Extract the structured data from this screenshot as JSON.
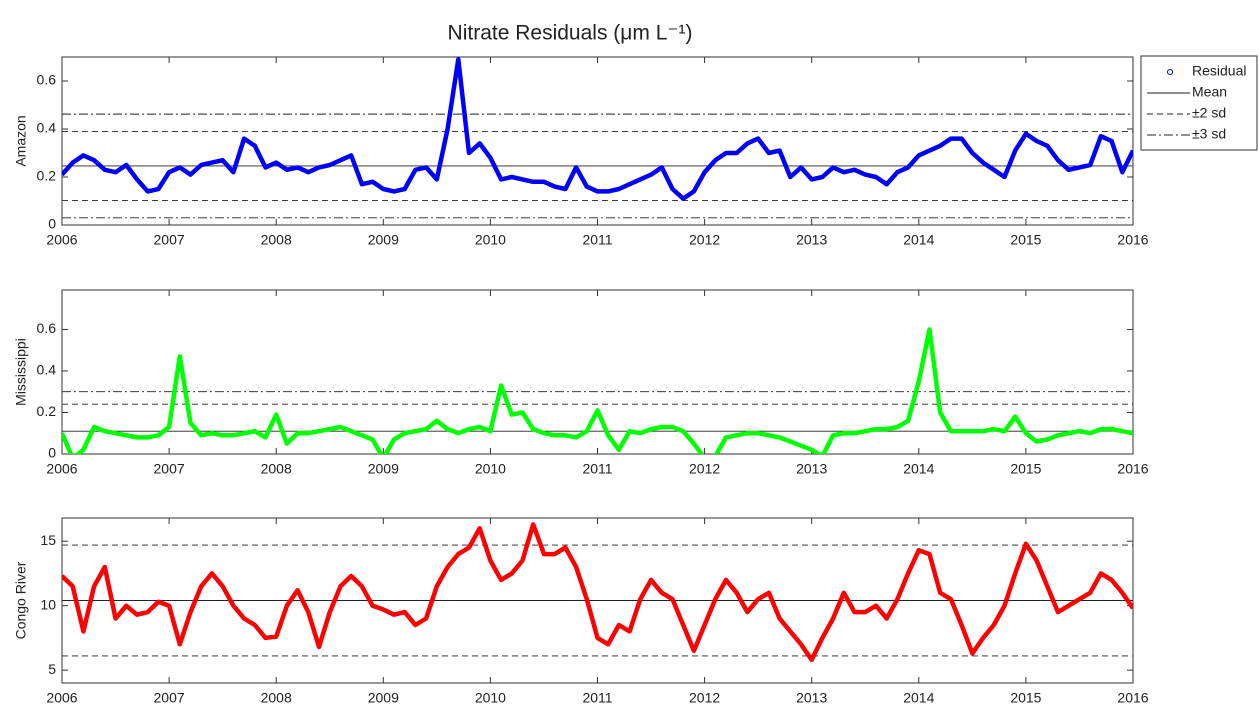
{
  "chart_data": [
    {
      "type": "scatter",
      "title": "Nitrate Residuals (μm L⁻¹)",
      "ylabel": "Amazon",
      "series_name": "Residual",
      "color": "#0000ff",
      "xlim": [
        2006,
        2016
      ],
      "xticks": [
        2006,
        2007,
        2008,
        2009,
        2010,
        2011,
        2012,
        2013,
        2014,
        2015,
        2016
      ],
      "ylim": [
        0,
        0.7
      ],
      "yticks": [
        0,
        0.2,
        0.4,
        0.6
      ],
      "x": [
        2006.0,
        2006.1,
        2006.2,
        2006.3,
        2006.4,
        2006.5,
        2006.6,
        2006.7,
        2006.8,
        2006.9,
        2007.0,
        2007.1,
        2007.2,
        2007.3,
        2007.4,
        2007.5,
        2007.6,
        2007.7,
        2007.8,
        2007.9,
        2008.0,
        2008.1,
        2008.2,
        2008.3,
        2008.4,
        2008.5,
        2008.6,
        2008.7,
        2008.8,
        2008.9,
        2009.0,
        2009.1,
        2009.2,
        2009.3,
        2009.4,
        2009.5,
        2009.6,
        2009.7,
        2009.8,
        2009.9,
        2010.0,
        2010.1,
        2010.2,
        2010.3,
        2010.4,
        2010.5,
        2010.6,
        2010.7,
        2010.8,
        2010.9,
        2011.0,
        2011.1,
        2011.2,
        2011.3,
        2011.4,
        2011.5,
        2011.6,
        2011.7,
        2011.8,
        2011.9,
        2012.0,
        2012.1,
        2012.2,
        2012.3,
        2012.4,
        2012.5,
        2012.6,
        2012.7,
        2012.8,
        2012.9,
        2013.0,
        2013.1,
        2013.2,
        2013.3,
        2013.4,
        2013.5,
        2013.6,
        2013.7,
        2013.8,
        2013.9,
        2014.0,
        2014.1,
        2014.2,
        2014.3,
        2014.4,
        2014.5,
        2014.6,
        2014.7,
        2014.8,
        2014.9,
        2015.0,
        2015.1,
        2015.2,
        2015.3,
        2015.4,
        2015.5,
        2015.6,
        2015.7,
        2015.8,
        2015.9,
        2016.0
      ],
      "values": [
        0.21,
        0.26,
        0.29,
        0.27,
        0.23,
        0.22,
        0.25,
        0.19,
        0.14,
        0.15,
        0.22,
        0.24,
        0.21,
        0.25,
        0.26,
        0.27,
        0.22,
        0.36,
        0.33,
        0.24,
        0.26,
        0.23,
        0.24,
        0.22,
        0.24,
        0.25,
        0.27,
        0.29,
        0.17,
        0.18,
        0.15,
        0.14,
        0.15,
        0.23,
        0.24,
        0.19,
        0.4,
        0.69,
        0.3,
        0.34,
        0.28,
        0.19,
        0.2,
        0.19,
        0.18,
        0.18,
        0.16,
        0.15,
        0.24,
        0.16,
        0.14,
        0.14,
        0.15,
        0.17,
        0.19,
        0.21,
        0.24,
        0.15,
        0.11,
        0.14,
        0.22,
        0.27,
        0.3,
        0.3,
        0.34,
        0.36,
        0.3,
        0.31,
        0.2,
        0.24,
        0.19,
        0.2,
        0.24,
        0.22,
        0.23,
        0.21,
        0.2,
        0.17,
        0.22,
        0.24,
        0.29,
        0.31,
        0.33,
        0.36,
        0.36,
        0.3,
        0.26,
        0.23,
        0.2,
        0.31,
        0.38,
        0.35,
        0.33,
        0.27,
        0.23,
        0.24,
        0.25,
        0.37,
        0.35,
        0.22,
        0.31
      ],
      "lines": [
        {
          "name": "Mean",
          "style": "solid",
          "values": [
            0.246
          ]
        },
        {
          "name": "±2 sd",
          "style": "dashed",
          "values": [
            0.102,
            0.39
          ]
        },
        {
          "name": "±3 sd",
          "style": "dashdot",
          "values": [
            0.03,
            0.462
          ]
        }
      ]
    },
    {
      "type": "scatter",
      "ylabel": "Mississippi",
      "color": "#00ff00",
      "xlim": [
        2006,
        2016
      ],
      "xticks": [
        2006,
        2007,
        2008,
        2009,
        2010,
        2011,
        2012,
        2013,
        2014,
        2015,
        2016
      ],
      "ylim": [
        0,
        0.79
      ],
      "yticks": [
        0,
        0.2,
        0.4,
        0.6
      ],
      "x": [
        2006.0,
        2006.1,
        2006.2,
        2006.3,
        2006.4,
        2006.5,
        2006.6,
        2006.7,
        2006.8,
        2006.9,
        2007.0,
        2007.1,
        2007.2,
        2007.3,
        2007.4,
        2007.5,
        2007.6,
        2007.7,
        2007.8,
        2007.9,
        2008.0,
        2008.1,
        2008.2,
        2008.3,
        2008.4,
        2008.5,
        2008.6,
        2008.7,
        2008.8,
        2008.9,
        2009.0,
        2009.1,
        2009.2,
        2009.3,
        2009.4,
        2009.5,
        2009.6,
        2009.7,
        2009.8,
        2009.9,
        2010.0,
        2010.1,
        2010.2,
        2010.3,
        2010.4,
        2010.5,
        2010.6,
        2010.7,
        2010.8,
        2010.9,
        2011.0,
        2011.1,
        2011.2,
        2011.3,
        2011.4,
        2011.5,
        2011.6,
        2011.7,
        2011.8,
        2011.9,
        2012.0,
        2012.1,
        2012.2,
        2012.3,
        2012.4,
        2012.5,
        2012.6,
        2012.7,
        2012.8,
        2012.9,
        2013.0,
        2013.1,
        2013.2,
        2013.3,
        2013.4,
        2013.5,
        2013.6,
        2013.7,
        2013.8,
        2013.9,
        2014.0,
        2014.1,
        2014.2,
        2014.3,
        2014.4,
        2014.5,
        2014.6,
        2014.7,
        2014.8,
        2014.9,
        2015.0,
        2015.1,
        2015.2,
        2015.3,
        2015.4,
        2015.5,
        2015.6,
        2015.7,
        2015.8,
        2015.9,
        2016.0
      ],
      "values": [
        0.1,
        -0.02,
        0.02,
        0.13,
        0.11,
        0.1,
        0.09,
        0.08,
        0.08,
        0.09,
        0.13,
        0.47,
        0.15,
        0.09,
        0.1,
        0.09,
        0.09,
        0.1,
        0.11,
        0.08,
        0.19,
        0.05,
        0.1,
        0.1,
        0.11,
        0.12,
        0.13,
        0.11,
        0.09,
        0.07,
        -0.02,
        0.07,
        0.1,
        0.11,
        0.12,
        0.16,
        0.12,
        0.1,
        0.12,
        0.13,
        0.11,
        0.33,
        0.19,
        0.2,
        0.12,
        0.1,
        0.09,
        0.09,
        0.08,
        0.11,
        0.21,
        0.09,
        0.02,
        0.11,
        0.1,
        0.12,
        0.13,
        0.13,
        0.11,
        0.05,
        -0.02,
        -0.01,
        0.08,
        0.09,
        0.1,
        0.1,
        0.09,
        0.08,
        0.06,
        0.04,
        0.02,
        -0.01,
        0.09,
        0.1,
        0.1,
        0.11,
        0.12,
        0.12,
        0.13,
        0.16,
        0.35,
        0.6,
        0.2,
        0.11,
        0.11,
        0.11,
        0.11,
        0.12,
        0.11,
        0.18,
        0.1,
        0.06,
        0.07,
        0.09,
        0.1,
        0.11,
        0.1,
        0.12,
        0.12,
        0.11,
        0.1
      ],
      "lines": [
        {
          "style": "solid",
          "values": [
            0.11
          ]
        },
        {
          "style": "dashed",
          "values": [
            0.24
          ]
        },
        {
          "style": "dashdot",
          "values": [
            0.3
          ]
        }
      ]
    },
    {
      "type": "scatter",
      "ylabel": "Congo River",
      "color": "#ff0000",
      "xlim": [
        2006,
        2016
      ],
      "xticks": [
        2006,
        2007,
        2008,
        2009,
        2010,
        2011,
        2012,
        2013,
        2014,
        2015,
        2016
      ],
      "ylim": [
        4,
        16.8
      ],
      "yticks": [
        5,
        10,
        15
      ],
      "x": [
        2006.0,
        2006.1,
        2006.2,
        2006.3,
        2006.4,
        2006.5,
        2006.6,
        2006.7,
        2006.8,
        2006.9,
        2007.0,
        2007.1,
        2007.2,
        2007.3,
        2007.4,
        2007.5,
        2007.6,
        2007.7,
        2007.8,
        2007.9,
        2008.0,
        2008.1,
        2008.2,
        2008.3,
        2008.4,
        2008.5,
        2008.6,
        2008.7,
        2008.8,
        2008.9,
        2009.0,
        2009.1,
        2009.2,
        2009.3,
        2009.4,
        2009.5,
        2009.6,
        2009.7,
        2009.8,
        2009.9,
        2010.0,
        2010.1,
        2010.2,
        2010.3,
        2010.4,
        2010.5,
        2010.6,
        2010.7,
        2010.8,
        2010.9,
        2011.0,
        2011.1,
        2011.2,
        2011.3,
        2011.4,
        2011.5,
        2011.6,
        2011.7,
        2011.8,
        2011.9,
        2012.0,
        2012.1,
        2012.2,
        2012.3,
        2012.4,
        2012.5,
        2012.6,
        2012.7,
        2012.8,
        2012.9,
        2013.0,
        2013.1,
        2013.2,
        2013.3,
        2013.4,
        2013.5,
        2013.6,
        2013.7,
        2013.8,
        2013.9,
        2014.0,
        2014.1,
        2014.2,
        2014.3,
        2014.4,
        2014.5,
        2014.6,
        2014.7,
        2014.8,
        2014.9,
        2015.0,
        2015.1,
        2015.2,
        2015.3,
        2015.4,
        2015.5,
        2015.6,
        2015.7,
        2015.8,
        2015.9,
        2016.0
      ],
      "values": [
        12.3,
        11.5,
        8.0,
        11.5,
        13.0,
        9.0,
        10.0,
        9.3,
        9.5,
        10.3,
        10.0,
        7.0,
        9.5,
        11.5,
        12.5,
        11.5,
        10.0,
        9.0,
        8.5,
        7.5,
        7.6,
        10.0,
        11.2,
        9.5,
        6.8,
        9.5,
        11.5,
        12.3,
        11.5,
        10.0,
        9.7,
        9.3,
        9.5,
        8.5,
        9.0,
        11.5,
        13.0,
        14.0,
        14.5,
        16.0,
        13.5,
        12.0,
        12.5,
        13.5,
        16.3,
        14.0,
        14.0,
        14.5,
        13.0,
        10.5,
        7.5,
        7.0,
        8.5,
        8.0,
        10.5,
        12.0,
        11.0,
        10.5,
        8.5,
        6.5,
        8.5,
        10.5,
        12.0,
        11.0,
        9.5,
        10.5,
        11.0,
        9.0,
        8.0,
        7.0,
        5.8,
        7.5,
        9.0,
        11.0,
        9.5,
        9.5,
        10.0,
        9.0,
        10.5,
        12.5,
        14.3,
        14.0,
        11.0,
        10.5,
        8.5,
        6.3,
        7.5,
        8.5,
        10.0,
        12.5,
        14.8,
        13.5,
        11.5,
        9.5,
        10.0,
        10.5,
        11.0,
        12.5,
        12.0,
        11.0,
        9.8
      ],
      "lines": [
        {
          "style": "solid",
          "values": [
            10.4
          ]
        },
        {
          "style": "dashed",
          "values": [
            6.1,
            14.7
          ]
        }
      ]
    }
  ]
}
